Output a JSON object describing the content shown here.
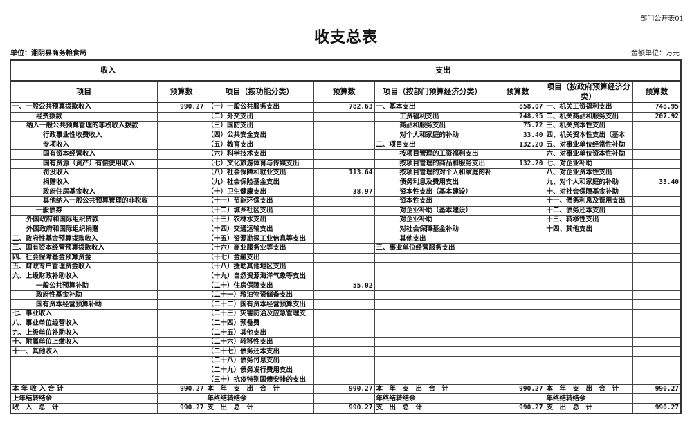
{
  "form_code": "部门公开表01",
  "title": "收支总表",
  "unit": "单位：湘阴县商务粮食局",
  "money_unit": "金额单位：万元",
  "headers": {
    "income": "收入",
    "expense": "支出",
    "cols": [
      "项目",
      "预算数",
      "项目（按功能分类）",
      "预算数",
      "项目（按部门预算经济分类）",
      "预算数",
      "项目（按政府预算经济分类）",
      "预算数"
    ]
  },
  "rows": [
    {
      "inc": "一、一般公共预算拨款收入",
      "lv": 0,
      "incv": "990.27",
      "fn": "（一）一般公共服务支出",
      "fnv": "782.63",
      "dep": "一、基本支出",
      "dlv": 0,
      "depv": "858.07",
      "gov": "一、机关工资福利支出",
      "govv": "748.95"
    },
    {
      "inc": "经费拨款",
      "lv": 2,
      "incv": "",
      "fn": "（二）外交支出",
      "fnv": "",
      "dep": "工资福利支出",
      "dlv": 2,
      "depv": "748.95",
      "gov": "二、机关商品和服务支出",
      "govv": "207.92"
    },
    {
      "inc": "纳入一般公共预算管理的非税收入拨款",
      "lv": 1,
      "incv": "",
      "fn": "（三）国防支出",
      "fnv": "",
      "dep": "商品和服务支出",
      "dlv": 2,
      "depv": "75.72",
      "gov": "三、机关资本性支出",
      "govv": ""
    },
    {
      "inc": "行政事业性收费收入",
      "lv": 3,
      "incv": "",
      "fn": "（四）公共安全支出",
      "fnv": "",
      "dep": "对个人和家庭的补助",
      "dlv": 2,
      "depv": "33.40",
      "gov": "四、机关资本性支出（基本",
      "govv": ""
    },
    {
      "inc": "专项收入",
      "lv": 3,
      "incv": "",
      "fn": "（五）教育支出",
      "fnv": "",
      "dep": "二、项目支出",
      "dlv": 0,
      "depv": "132.20",
      "gov": "五、对事业单位经常性补助",
      "govv": ""
    },
    {
      "inc": "国有资本经营收入",
      "lv": 3,
      "incv": "",
      "fn": "（六）科学技术支出",
      "fnv": "",
      "dep": "按项目管理的工资福利支出",
      "dlv": 2,
      "depv": "",
      "gov": "六、对事业单位资本性补助",
      "govv": ""
    },
    {
      "inc": "国有资源（资产）有偿使用收入",
      "lv": 3,
      "incv": "",
      "fn": "（七）文化旅游体育与传媒支出",
      "fnv": "",
      "dep": "按项目管理的商品和服务支出",
      "dlv": 2,
      "depv": "132.20",
      "gov": "七、对企业补助",
      "govv": ""
    },
    {
      "inc": "罚没收入",
      "lv": 3,
      "incv": "",
      "fn": "（八）社会保障和就业支出",
      "fnv": "113.64",
      "dep": "按项目管理的对个人和家庭的补",
      "dlv": 2,
      "depv": "",
      "gov": "八、对企业资本性支出",
      "govv": ""
    },
    {
      "inc": "捐赠收入",
      "lv": 3,
      "incv": "",
      "fn": "（九）社会保险基金支出",
      "fnv": "",
      "dep": "债务利息及费用支出",
      "dlv": 2,
      "depv": "",
      "gov": "九、对个人和家庭的补助",
      "govv": "33.40"
    },
    {
      "inc": "政府住房基金收入",
      "lv": 3,
      "incv": "",
      "fn": "（十）卫生健康支出",
      "fnv": "38.97",
      "dep": "资本性支出（基本建设）",
      "dlv": 2,
      "depv": "",
      "gov": "十、对社会保障基金补助",
      "govv": ""
    },
    {
      "inc": "其他纳入一般公共预算管理的非税收",
      "lv": 3,
      "incv": "",
      "fn": "（十一）节能环保支出",
      "fnv": "",
      "dep": "资本性支出",
      "dlv": 2,
      "depv": "",
      "gov": "十一、债务利息及费用支出",
      "govv": ""
    },
    {
      "inc": "一般债券",
      "lv": 2,
      "incv": "",
      "fn": "（十二）城乡社区支出",
      "fnv": "",
      "dep": "对企业补助（基本建设）",
      "dlv": 2,
      "depv": "",
      "gov": "十二、债务还本支出",
      "govv": ""
    },
    {
      "inc": "外国政府和国际组织贷款",
      "lv": 1,
      "incv": "",
      "fn": "（十三）农林水支出",
      "fnv": "",
      "dep": "对企业补助",
      "dlv": 2,
      "depv": "",
      "gov": "十三、转移性支出",
      "govv": ""
    },
    {
      "inc": "外国政府和国际组织捐赠",
      "lv": 1,
      "incv": "",
      "fn": "（十四）交通运输支出",
      "fnv": "",
      "dep": "对社会保障基金补助",
      "dlv": 2,
      "depv": "",
      "gov": "十四、其他支出",
      "govv": ""
    },
    {
      "inc": "二、政府性基金预算拨款收入",
      "lv": 0,
      "incv": "",
      "fn": "（十五）资源勘探工业信息等支出",
      "fnv": "",
      "dep": "其他支出",
      "dlv": 2,
      "depv": "",
      "gov": "",
      "govv": ""
    },
    {
      "inc": "三、国有资本经营预算拨款收入",
      "lv": 0,
      "incv": "",
      "fn": "（十六）商业服务业等支出",
      "fnv": "",
      "dep": "三、事业单位经营服务支出",
      "dlv": 0,
      "depv": "",
      "gov": "",
      "govv": ""
    },
    {
      "inc": "四、社会保障基金预算资金",
      "lv": 0,
      "incv": "",
      "fn": "（十七）金融支出",
      "fnv": "",
      "dep": "",
      "dlv": 0,
      "depv": "",
      "gov": "",
      "govv": ""
    },
    {
      "inc": "五、财政专户管理资金收入",
      "lv": 0,
      "incv": "",
      "fn": "（十八）援助其他地区支出",
      "fnv": "",
      "dep": "",
      "dlv": 0,
      "depv": "",
      "gov": "",
      "govv": ""
    },
    {
      "inc": "六、上级财政补助收入",
      "lv": 0,
      "incv": "",
      "fn": "（十九）自然资源海洋气象等支出",
      "fnv": "",
      "dep": "",
      "dlv": 0,
      "depv": "",
      "gov": "",
      "govv": ""
    },
    {
      "inc": "一般公共预算补助",
      "lv": 2,
      "incv": "",
      "fn": "（二十）住房保障支出",
      "fnv": "55.02",
      "dep": "",
      "dlv": 0,
      "depv": "",
      "gov": "",
      "govv": ""
    },
    {
      "inc": "政府性基金补助",
      "lv": 2,
      "incv": "",
      "fn": "（二十一）粮油物资储备支出",
      "fnv": "",
      "dep": "",
      "dlv": 0,
      "depv": "",
      "gov": "",
      "govv": ""
    },
    {
      "inc": "国有资本经营预算补助",
      "lv": 2,
      "incv": "",
      "fn": "（二十二）国有资本经营预算支出",
      "fnv": "",
      "dep": "",
      "dlv": 0,
      "depv": "",
      "gov": "",
      "govv": ""
    },
    {
      "inc": "七、事业收入",
      "lv": 0,
      "incv": "",
      "fn": "（二十三）灾害防治及应急管理支",
      "fnv": "",
      "dep": "",
      "dlv": 0,
      "depv": "",
      "gov": "",
      "govv": ""
    },
    {
      "inc": "八、事业单位经营收入",
      "lv": 0,
      "incv": "",
      "fn": "（二十四）预备费",
      "fnv": "",
      "dep": "",
      "dlv": 0,
      "depv": "",
      "gov": "",
      "govv": ""
    },
    {
      "inc": "九、上级单位补助收入",
      "lv": 0,
      "incv": "",
      "fn": "（二十五）其他支出",
      "fnv": "",
      "dep": "",
      "dlv": 0,
      "depv": "",
      "gov": "",
      "govv": ""
    },
    {
      "inc": "十、附属单位上缴收入",
      "lv": 0,
      "incv": "",
      "fn": "（二十六）转移性支出",
      "fnv": "",
      "dep": "",
      "dlv": 0,
      "depv": "",
      "gov": "",
      "govv": ""
    },
    {
      "inc": "十一、其他收入",
      "lv": 0,
      "incv": "",
      "fn": "（二十七）债务还本支出",
      "fnv": "",
      "dep": "",
      "dlv": 0,
      "depv": "",
      "gov": "",
      "govv": ""
    },
    {
      "inc": "",
      "lv": 0,
      "incv": "",
      "fn": "（二十八）债务付息支出",
      "fnv": "",
      "dep": "",
      "dlv": 0,
      "depv": "",
      "gov": "",
      "govv": ""
    },
    {
      "inc": "",
      "lv": 0,
      "incv": "",
      "fn": "（二十九）债务发行费用支出",
      "fnv": "",
      "dep": "",
      "dlv": 0,
      "depv": "",
      "gov": "",
      "govv": ""
    },
    {
      "inc": "",
      "lv": 0,
      "incv": "",
      "fn": "（三十）抗疫特别国债安排的支出",
      "fnv": "",
      "dep": "",
      "dlv": 0,
      "depv": "",
      "gov": "",
      "govv": ""
    },
    {
      "inc": "本 年 收 入 合 计",
      "lv": 0,
      "incv": "990.27",
      "fn": "本　年　支　出　合　计",
      "fnv": "990.27",
      "dep": "本　年　支　出　合　计",
      "dlv": 0,
      "depv": "990.27",
      "gov": "本　年　支　出　合　计",
      "govv": "990.27"
    },
    {
      "inc": "上年结转结余",
      "lv": 0,
      "incv": "",
      "fn": "年终结转结余",
      "fnv": "",
      "dep": "年终结转结余",
      "dlv": 0,
      "depv": "",
      "gov": "年终结转结余",
      "govv": ""
    },
    {
      "inc": "收　入　总　计",
      "lv": 0,
      "incv": "990.27",
      "fn": "支　出　总　计",
      "fnv": "990.27",
      "dep": "支　出　总　计",
      "dlv": 0,
      "depv": "990.27",
      "gov": "支　出　总　计",
      "govv": "990.27"
    }
  ]
}
